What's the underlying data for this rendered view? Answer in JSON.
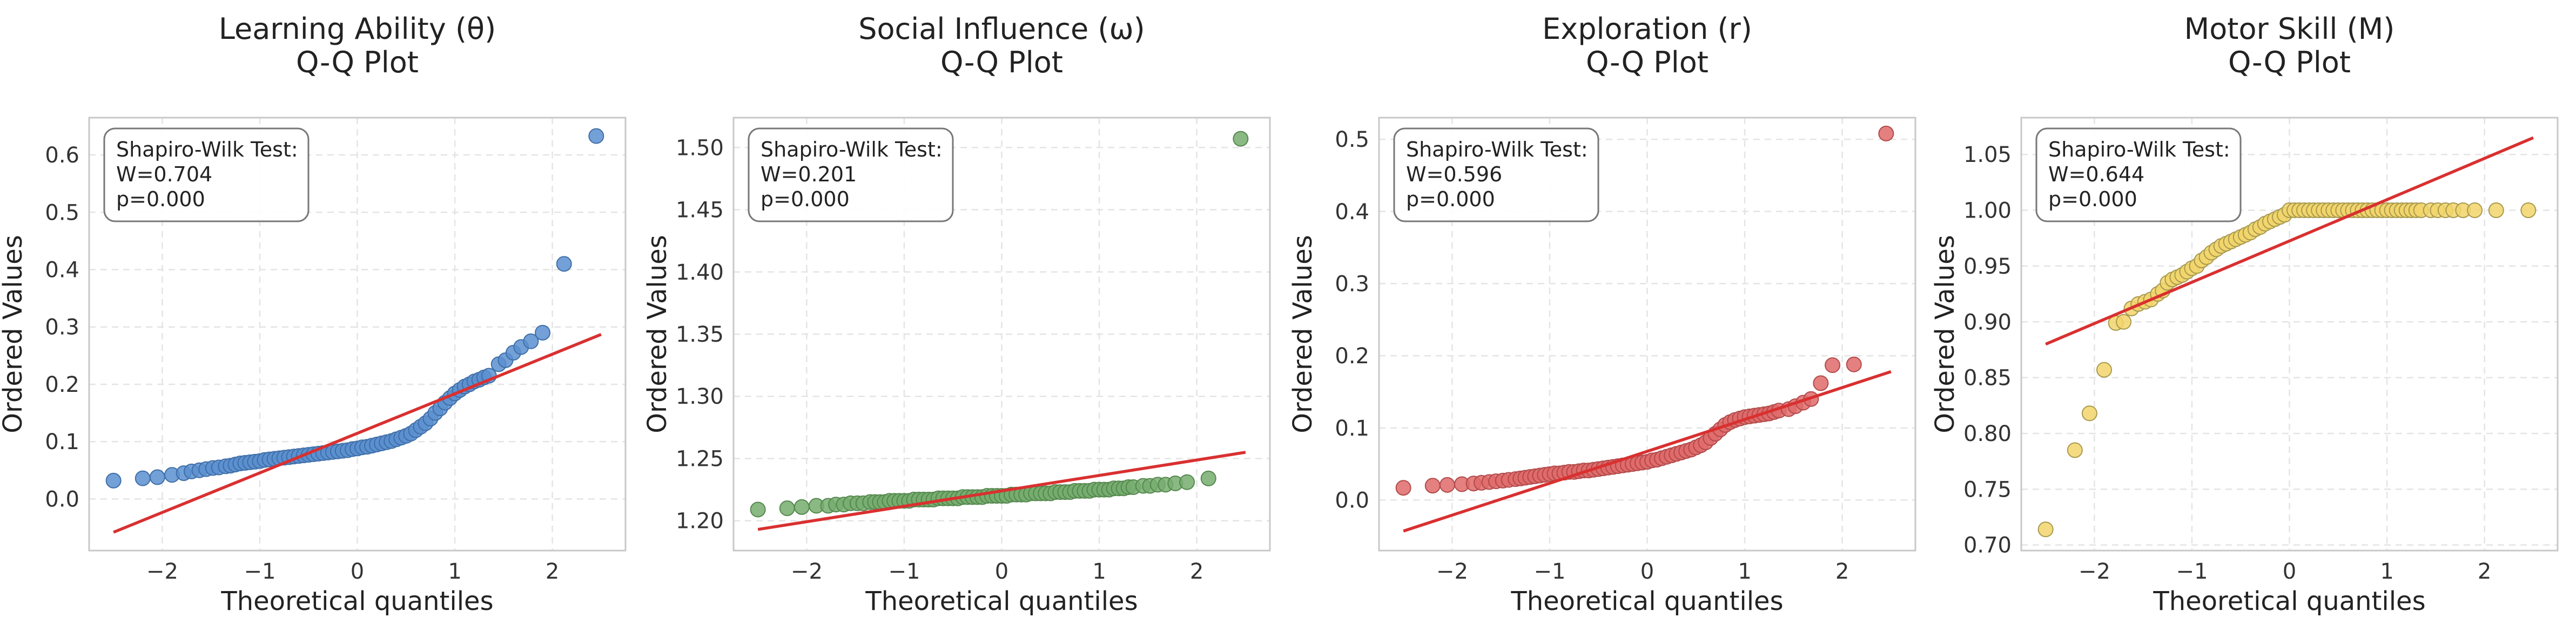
{
  "figure": {
    "colors": {
      "fit_line": "#d93030",
      "grid": "#e4e4e4",
      "frame": "#c8c8c8",
      "annot_border": "#777777"
    }
  },
  "chart_data": [
    {
      "type": "scatter",
      "title": "Learning Ability (θ)\nQ-Q Plot",
      "xlabel": "Theoretical quantiles",
      "ylabel": "Ordered Values",
      "xlim": [
        -2.75,
        2.75
      ],
      "ylim": [
        -0.09,
        0.665
      ],
      "xticks": [
        -2,
        -1,
        0,
        1,
        2
      ],
      "xtick_labels": [
        "−2",
        "−1",
        "0",
        "1",
        "2"
      ],
      "yticks": [
        0.0,
        0.1,
        0.2,
        0.3,
        0.4,
        0.5,
        0.6
      ],
      "ytick_labels": [
        "0.0",
        "0.1",
        "0.2",
        "0.3",
        "0.4",
        "0.5",
        "0.6"
      ],
      "grid": true,
      "point_color": "#5a8fd0",
      "point_edge": "#3f6fa8",
      "annotation": [
        "Shapiro-Wilk Test:",
        "W=0.704",
        "p=0.000"
      ],
      "fit_line": {
        "x": [
          -2.5,
          2.5
        ],
        "y": [
          -0.058,
          0.287
        ]
      },
      "points": {
        "x": [
          -2.5,
          -2.2,
          -2.05,
          -1.9,
          -1.78,
          -1.7,
          -1.62,
          -1.55,
          -1.48,
          -1.42,
          -1.35,
          -1.3,
          -1.25,
          -1.2,
          -1.15,
          -1.1,
          -1.05,
          -1.0,
          -0.95,
          -0.9,
          -0.85,
          -0.8,
          -0.75,
          -0.7,
          -0.65,
          -0.6,
          -0.55,
          -0.5,
          -0.45,
          -0.4,
          -0.35,
          -0.3,
          -0.25,
          -0.2,
          -0.15,
          -0.1,
          -0.05,
          0.0,
          0.05,
          0.1,
          0.15,
          0.2,
          0.25,
          0.3,
          0.35,
          0.4,
          0.45,
          0.5,
          0.55,
          0.6,
          0.65,
          0.7,
          0.75,
          0.8,
          0.85,
          0.9,
          0.95,
          1.0,
          1.05,
          1.1,
          1.15,
          1.2,
          1.25,
          1.3,
          1.35,
          1.45,
          1.52,
          1.6,
          1.68,
          1.78,
          1.9,
          2.12,
          2.45
        ],
        "y": [
          0.032,
          0.036,
          0.038,
          0.042,
          0.045,
          0.048,
          0.05,
          0.052,
          0.054,
          0.055,
          0.057,
          0.058,
          0.06,
          0.062,
          0.063,
          0.064,
          0.065,
          0.066,
          0.068,
          0.069,
          0.07,
          0.071,
          0.072,
          0.073,
          0.074,
          0.075,
          0.076,
          0.077,
          0.078,
          0.079,
          0.08,
          0.081,
          0.082,
          0.083,
          0.084,
          0.085,
          0.087,
          0.088,
          0.09,
          0.091,
          0.093,
          0.095,
          0.097,
          0.099,
          0.101,
          0.104,
          0.107,
          0.11,
          0.114,
          0.12,
          0.126,
          0.132,
          0.14,
          0.15,
          0.158,
          0.168,
          0.176,
          0.184,
          0.19,
          0.196,
          0.2,
          0.205,
          0.208,
          0.212,
          0.215,
          0.235,
          0.242,
          0.255,
          0.265,
          0.275,
          0.29,
          0.41,
          0.633
        ]
      }
    },
    {
      "type": "scatter",
      "title": "Social Influence (ω)\nQ-Q Plot",
      "xlabel": "Theoretical quantiles",
      "ylabel": "Ordered Values",
      "xlim": [
        -2.75,
        2.75
      ],
      "ylim": [
        1.176,
        1.524
      ],
      "xticks": [
        -2,
        -1,
        0,
        1,
        2
      ],
      "xtick_labels": [
        "−2",
        "−1",
        "0",
        "1",
        "2"
      ],
      "yticks": [
        1.2,
        1.25,
        1.3,
        1.35,
        1.4,
        1.45,
        1.5
      ],
      "ytick_labels": [
        "1.20",
        "1.25",
        "1.30",
        "1.35",
        "1.40",
        "1.45",
        "1.50"
      ],
      "grid": true,
      "point_color": "#76ad6e",
      "point_edge": "#55884e",
      "annotation": [
        "Shapiro-Wilk Test:",
        "W=0.201",
        "p=0.000"
      ],
      "fit_line": {
        "x": [
          -2.5,
          2.5
        ],
        "y": [
          1.193,
          1.255
        ]
      },
      "points": {
        "x": [
          -2.5,
          -2.2,
          -2.05,
          -1.9,
          -1.78,
          -1.7,
          -1.62,
          -1.55,
          -1.48,
          -1.42,
          -1.35,
          -1.3,
          -1.25,
          -1.2,
          -1.15,
          -1.1,
          -1.05,
          -1.0,
          -0.95,
          -0.9,
          -0.85,
          -0.8,
          -0.75,
          -0.7,
          -0.65,
          -0.6,
          -0.55,
          -0.5,
          -0.45,
          -0.4,
          -0.35,
          -0.3,
          -0.25,
          -0.2,
          -0.15,
          -0.1,
          -0.05,
          0.0,
          0.05,
          0.1,
          0.15,
          0.2,
          0.25,
          0.3,
          0.35,
          0.4,
          0.45,
          0.5,
          0.55,
          0.6,
          0.65,
          0.7,
          0.75,
          0.8,
          0.85,
          0.9,
          0.95,
          1.0,
          1.05,
          1.1,
          1.15,
          1.2,
          1.25,
          1.3,
          1.35,
          1.45,
          1.52,
          1.6,
          1.68,
          1.78,
          1.9,
          2.12,
          2.45
        ],
        "y": [
          1.209,
          1.21,
          1.211,
          1.212,
          1.212,
          1.213,
          1.213,
          1.214,
          1.214,
          1.214,
          1.215,
          1.215,
          1.215,
          1.215,
          1.216,
          1.216,
          1.216,
          1.216,
          1.216,
          1.217,
          1.217,
          1.217,
          1.217,
          1.217,
          1.218,
          1.218,
          1.218,
          1.218,
          1.218,
          1.219,
          1.219,
          1.219,
          1.219,
          1.219,
          1.22,
          1.22,
          1.22,
          1.22,
          1.22,
          1.221,
          1.221,
          1.221,
          1.221,
          1.222,
          1.222,
          1.222,
          1.222,
          1.222,
          1.223,
          1.223,
          1.223,
          1.223,
          1.224,
          1.224,
          1.224,
          1.224,
          1.225,
          1.225,
          1.225,
          1.225,
          1.226,
          1.226,
          1.226,
          1.227,
          1.227,
          1.228,
          1.228,
          1.229,
          1.229,
          1.23,
          1.231,
          1.234,
          1.507
        ]
      }
    },
    {
      "type": "scatter",
      "title": "Exploration (r)\nQ-Q Plot",
      "xlabel": "Theoretical quantiles",
      "ylabel": "Ordered Values",
      "xlim": [
        -2.75,
        2.75
      ],
      "ylim": [
        -0.07,
        0.53
      ],
      "xticks": [
        -2,
        -1,
        0,
        1,
        2
      ],
      "xtick_labels": [
        "−2",
        "−1",
        "0",
        "1",
        "2"
      ],
      "yticks": [
        0.0,
        0.1,
        0.2,
        0.3,
        0.4,
        0.5
      ],
      "ytick_labels": [
        "0.0",
        "0.1",
        "0.2",
        "0.3",
        "0.4",
        "0.5"
      ],
      "grid": true,
      "point_color": "#e06a6a",
      "point_edge": "#b24a4a",
      "annotation": [
        "Shapiro-Wilk Test:",
        "W=0.596",
        "p=0.000"
      ],
      "fit_line": {
        "x": [
          -2.5,
          2.5
        ],
        "y": [
          -0.043,
          0.178
        ]
      },
      "points": {
        "x": [
          -2.5,
          -2.2,
          -2.05,
          -1.9,
          -1.78,
          -1.7,
          -1.62,
          -1.55,
          -1.48,
          -1.42,
          -1.35,
          -1.3,
          -1.25,
          -1.2,
          -1.15,
          -1.1,
          -1.05,
          -1.0,
          -0.95,
          -0.9,
          -0.85,
          -0.8,
          -0.75,
          -0.7,
          -0.65,
          -0.6,
          -0.55,
          -0.5,
          -0.45,
          -0.4,
          -0.35,
          -0.3,
          -0.25,
          -0.2,
          -0.15,
          -0.1,
          -0.05,
          0.0,
          0.05,
          0.1,
          0.15,
          0.2,
          0.25,
          0.3,
          0.35,
          0.4,
          0.45,
          0.5,
          0.55,
          0.6,
          0.65,
          0.7,
          0.75,
          0.8,
          0.85,
          0.9,
          0.95,
          1.0,
          1.05,
          1.1,
          1.15,
          1.2,
          1.25,
          1.3,
          1.35,
          1.45,
          1.52,
          1.6,
          1.68,
          1.78,
          1.9,
          2.12,
          2.45
        ],
        "y": [
          0.017,
          0.02,
          0.021,
          0.022,
          0.023,
          0.024,
          0.025,
          0.026,
          0.027,
          0.028,
          0.029,
          0.03,
          0.031,
          0.032,
          0.033,
          0.034,
          0.035,
          0.036,
          0.037,
          0.037,
          0.038,
          0.039,
          0.039,
          0.04,
          0.041,
          0.041,
          0.042,
          0.043,
          0.044,
          0.045,
          0.046,
          0.047,
          0.048,
          0.049,
          0.05,
          0.051,
          0.052,
          0.053,
          0.055,
          0.056,
          0.058,
          0.06,
          0.062,
          0.064,
          0.066,
          0.068,
          0.07,
          0.073,
          0.076,
          0.08,
          0.086,
          0.092,
          0.098,
          0.104,
          0.108,
          0.111,
          0.113,
          0.115,
          0.116,
          0.117,
          0.118,
          0.119,
          0.12,
          0.122,
          0.124,
          0.126,
          0.13,
          0.135,
          0.14,
          0.162,
          0.187,
          0.188,
          0.508
        ]
      }
    },
    {
      "type": "scatter",
      "title": "Motor Skill (M)\nQ-Q Plot",
      "xlabel": "Theoretical quantiles",
      "ylabel": "Ordered Values",
      "xlim": [
        -2.75,
        2.75
      ],
      "ylim": [
        0.695,
        1.083
      ],
      "xticks": [
        -2,
        -1,
        0,
        1,
        2
      ],
      "xtick_labels": [
        "−2",
        "−1",
        "0",
        "1",
        "2"
      ],
      "yticks": [
        0.7,
        0.75,
        0.8,
        0.85,
        0.9,
        0.95,
        1.0,
        1.05
      ],
      "ytick_labels": [
        "0.70",
        "0.75",
        "0.80",
        "0.85",
        "0.90",
        "0.95",
        "1.00",
        "1.05"
      ],
      "grid": true,
      "point_color": "#f2d56b",
      "point_edge": "#a89a4e",
      "annotation": [
        "Shapiro-Wilk Test:",
        "W=0.644",
        "p=0.000"
      ],
      "fit_line": {
        "x": [
          -2.5,
          2.5
        ],
        "y": [
          0.88,
          1.065
        ]
      },
      "points": {
        "x": [
          -2.5,
          -2.2,
          -2.05,
          -1.9,
          -1.78,
          -1.7,
          -1.62,
          -1.55,
          -1.48,
          -1.42,
          -1.35,
          -1.3,
          -1.25,
          -1.2,
          -1.15,
          -1.1,
          -1.05,
          -1.0,
          -0.95,
          -0.9,
          -0.85,
          -0.8,
          -0.75,
          -0.7,
          -0.65,
          -0.6,
          -0.55,
          -0.5,
          -0.45,
          -0.4,
          -0.35,
          -0.3,
          -0.25,
          -0.2,
          -0.15,
          -0.1,
          -0.05,
          0.0,
          0.05,
          0.1,
          0.15,
          0.2,
          0.25,
          0.3,
          0.35,
          0.4,
          0.45,
          0.5,
          0.55,
          0.6,
          0.65,
          0.7,
          0.75,
          0.8,
          0.85,
          0.9,
          0.95,
          1.0,
          1.05,
          1.1,
          1.15,
          1.2,
          1.25,
          1.3,
          1.35,
          1.45,
          1.52,
          1.6,
          1.68,
          1.78,
          1.9,
          2.12,
          2.45
        ],
        "y": [
          0.714,
          0.785,
          0.818,
          0.857,
          0.899,
          0.9,
          0.912,
          0.916,
          0.918,
          0.92,
          0.925,
          0.928,
          0.935,
          0.938,
          0.94,
          0.942,
          0.945,
          0.948,
          0.95,
          0.955,
          0.958,
          0.962,
          0.965,
          0.968,
          0.97,
          0.972,
          0.974,
          0.976,
          0.978,
          0.98,
          0.983,
          0.985,
          0.988,
          0.99,
          0.992,
          0.994,
          0.996,
          1.0,
          1.0,
          1.0,
          1.0,
          1.0,
          1.0,
          1.0,
          1.0,
          1.0,
          1.0,
          1.0,
          1.0,
          1.0,
          1.0,
          1.0,
          1.0,
          1.0,
          1.0,
          1.0,
          1.0,
          1.0,
          1.0,
          1.0,
          1.0,
          1.0,
          1.0,
          1.0,
          1.0,
          1.0,
          1.0,
          1.0,
          1.0,
          1.0,
          1.0,
          1.0,
          1.0
        ]
      }
    }
  ]
}
